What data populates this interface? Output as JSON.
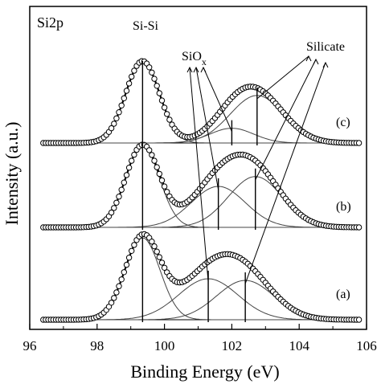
{
  "chart_data": {
    "type": "line",
    "title": "Si2p",
    "xlabel": "Binding Energy (eV)",
    "ylabel": "Intensity (a.u.)",
    "xlim": [
      96,
      106
    ],
    "x_ticks": [
      "96",
      "98",
      "100",
      "102",
      "104",
      "106"
    ],
    "grid": false,
    "legend": "none",
    "annotations": {
      "sisi": "Si-Si",
      "siox_main": "SiO",
      "siox_sub": "x",
      "silicate": "Silicate"
    },
    "series": [
      {
        "label": "(a)",
        "baseline": 0.05,
        "peaks": [
          {
            "component": "Si-Si",
            "center": 99.35,
            "height": 1.0,
            "width": 0.52
          },
          {
            "component": "SiOx",
            "center": 101.3,
            "height": 0.5,
            "width": 0.88
          },
          {
            "component": "Silicate",
            "center": 102.4,
            "height": 0.48,
            "width": 0.85
          }
        ]
      },
      {
        "label": "(b)",
        "baseline": 0.05,
        "peaks": [
          {
            "component": "Si-Si",
            "center": 99.35,
            "height": 1.0,
            "width": 0.5
          },
          {
            "component": "SiOx",
            "center": 101.6,
            "height": 0.5,
            "width": 0.8
          },
          {
            "component": "Silicate",
            "center": 102.7,
            "height": 0.62,
            "width": 0.8
          }
        ]
      },
      {
        "label": "(c)",
        "baseline": 0.05,
        "peaks": [
          {
            "component": "Si-Si",
            "center": 99.35,
            "height": 1.0,
            "width": 0.5
          },
          {
            "component": "SiOx",
            "center": 102.0,
            "height": 0.18,
            "width": 0.65
          },
          {
            "component": "Silicate",
            "center": 102.75,
            "height": 0.58,
            "width": 0.8
          }
        ]
      }
    ]
  }
}
